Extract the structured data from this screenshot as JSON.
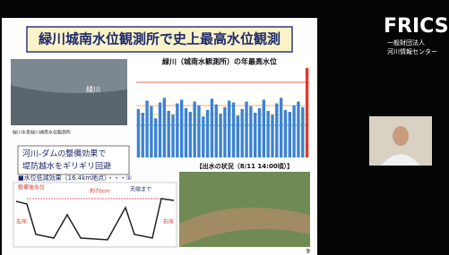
{
  "slide": {
    "title": "緑川城南水位観測所で史上最高水位観測",
    "photo_label": "緑川",
    "photo_caption": "緑川水系緑川城南水位観測所",
    "chart": {
      "type": "bar",
      "title": "緑川（城南水観測所）の年最高水位",
      "values": [
        5.2,
        4.8,
        6.1,
        5.5,
        4.2,
        5.9,
        6.4,
        5.0,
        4.6,
        5.8,
        6.2,
        5.3,
        4.9,
        6.0,
        5.6,
        4.4,
        5.1,
        6.3,
        5.7,
        4.7,
        5.4,
        6.1,
        5.9,
        4.5,
        5.2,
        6.0,
        5.5,
        4.8,
        5.3,
        6.2,
        5.0,
        4.6,
        5.8,
        6.4,
        5.1,
        4.9,
        5.6,
        6.0,
        5.4,
        9.6
      ],
      "colors": {
        "normal": "#3b82d6",
        "latest": "#e03a2a"
      }
    },
    "effect_box": {
      "line1": "河川-ダムの整備効果で",
      "line2": "堤防越水をギリギリ回避"
    },
    "effect_heading": "■水位低減効果（16.4km地点）・・・②",
    "diagram": {
      "label1": "整備後水位",
      "label2": "約70cm",
      "label3": "天端まで",
      "left_bank": "左岸",
      "right_bank": "右岸"
    },
    "aerial_title": "【出水の状況（8/11 14:00頃）】",
    "page_number": "9"
  },
  "logo": {
    "name": "FRICS",
    "org1": "一般財団法人",
    "org2": "河川情報センター"
  }
}
